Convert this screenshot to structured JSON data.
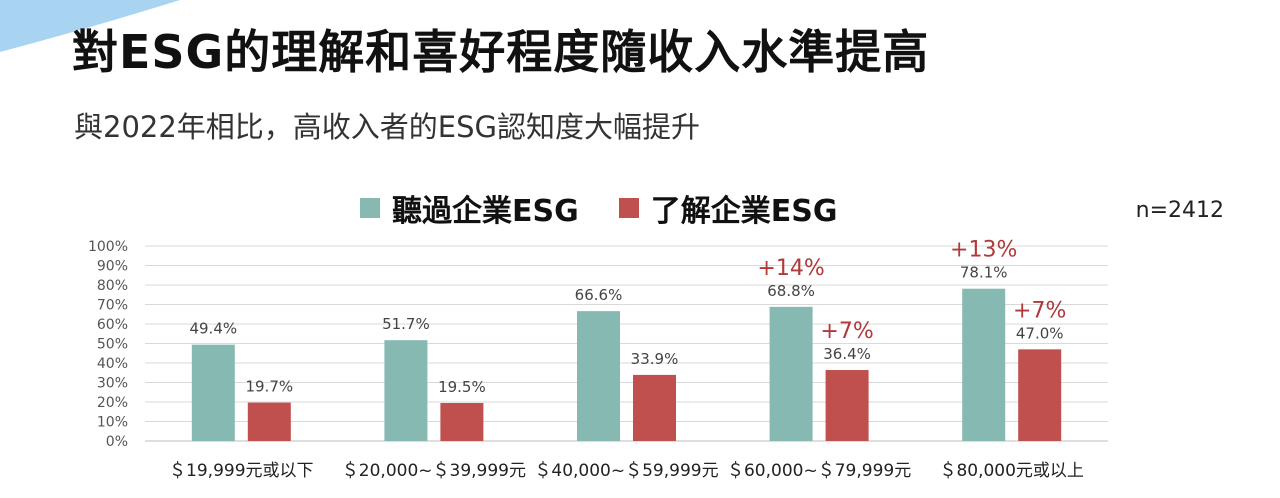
{
  "title": "對ESG的理解和喜好程度隨收入水準提高",
  "subtitle": "與2022年相比，高收入者的ESG認知度大幅提升",
  "sample_size": "n=2412",
  "colors": {
    "heard": "#87b9b3",
    "understand": "#c0504d",
    "accent": "#b03a3a",
    "corner": "#a8d4f2"
  },
  "chart_data": {
    "type": "bar",
    "categories": [
      "＄19,999元或以下",
      "＄20,000~＄39,999元",
      "＄40,000~＄59,999元",
      "＄60,000~＄79,999元",
      "＄80,000元或以上"
    ],
    "series": [
      {
        "name": "聽過企業ESG",
        "values": [
          49.4,
          51.7,
          66.6,
          68.8,
          78.1
        ],
        "labels": [
          "49.4%",
          "51.7%",
          "66.6%",
          "68.8%",
          "78.1%"
        ]
      },
      {
        "name": "了解企業ESG",
        "values": [
          19.7,
          19.5,
          33.9,
          36.4,
          47.0
        ],
        "labels": [
          "19.7%",
          "19.5%",
          "33.9%",
          "36.4%",
          "47.0%"
        ]
      }
    ],
    "ylim": [
      0,
      100
    ],
    "yticks": [
      "0%",
      "10%",
      "20%",
      "30%",
      "40%",
      "50%",
      "60%",
      "70%",
      "80%",
      "90%",
      "100%"
    ],
    "grid": true,
    "legend": "top",
    "annotations": [
      {
        "category": 3,
        "series": 0,
        "text": "+14%"
      },
      {
        "category": 3,
        "series": 1,
        "text": "+7%"
      },
      {
        "category": 4,
        "series": 0,
        "text": "+13%"
      },
      {
        "category": 4,
        "series": 1,
        "text": "+7%"
      }
    ]
  }
}
